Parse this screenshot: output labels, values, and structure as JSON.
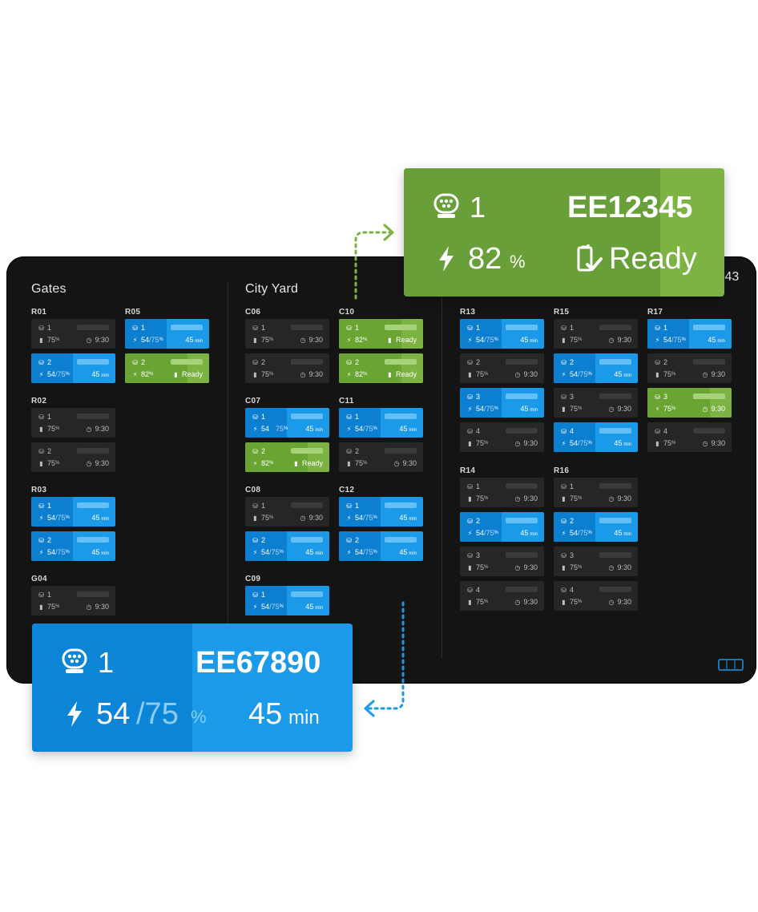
{
  "colors": {
    "charging": "#1a9ae8",
    "ready": "#7cb342",
    "idle": "#262626",
    "background": "#141414"
  },
  "screen": {
    "time_fragment": ":43",
    "sections": [
      {
        "title": "Gates"
      },
      {
        "title": "City Yard"
      }
    ]
  },
  "groups": [
    {
      "id": "R01",
      "label": "R01",
      "cards": [
        {
          "status": "idle",
          "num": "1",
          "pct": "75",
          "right": "9:30"
        },
        {
          "status": "charging",
          "num": "2",
          "pct": "54",
          "target": "/75",
          "right": "45"
        }
      ]
    },
    {
      "id": "R05",
      "label": "R05",
      "cards": [
        {
          "status": "charging",
          "num": "1",
          "pct": "54",
          "target": "/75",
          "right": "45"
        },
        {
          "status": "ready",
          "num": "2",
          "pct": "82",
          "right": "Ready"
        }
      ]
    },
    {
      "id": "R02",
      "label": "R02",
      "cards": [
        {
          "status": "idle",
          "num": "1",
          "pct": "75",
          "right": "9:30"
        },
        {
          "status": "idle",
          "num": "2",
          "pct": "75",
          "right": "9:30"
        }
      ]
    },
    {
      "id": "R03",
      "label": "R03",
      "cards": [
        {
          "status": "charging",
          "num": "1",
          "pct": "54",
          "target": "/75",
          "right": "45"
        },
        {
          "status": "charging",
          "num": "2",
          "pct": "54",
          "target": "/75",
          "right": "45"
        }
      ]
    },
    {
      "id": "G04",
      "label": "G04",
      "cards": [
        {
          "status": "idle",
          "num": "1",
          "pct": "75",
          "right": "9:30"
        }
      ]
    },
    {
      "id": "C06",
      "label": "C06",
      "cards": [
        {
          "status": "idle",
          "num": "1",
          "pct": "75",
          "right": "9:30"
        },
        {
          "status": "idle",
          "num": "2",
          "pct": "75",
          "right": "9:30"
        }
      ]
    },
    {
      "id": "C10",
      "label": "C10",
      "cards": [
        {
          "status": "ready",
          "num": "1",
          "pct": "82",
          "right": "Ready"
        },
        {
          "status": "ready",
          "num": "2",
          "pct": "82",
          "right": "Ready"
        }
      ]
    },
    {
      "id": "C07",
      "label": "C07",
      "cards": [
        {
          "status": "charging",
          "num": "1",
          "pct": "54",
          "target": "75",
          "right": "45"
        },
        {
          "status": "ready",
          "num": "2",
          "pct": "82",
          "right": "Ready"
        }
      ]
    },
    {
      "id": "C11",
      "label": "C11",
      "cards": [
        {
          "status": "charging",
          "num": "1",
          "pct": "54",
          "target": "/75",
          "right": "45"
        },
        {
          "status": "idle",
          "num": "2",
          "pct": "75",
          "right": "9:30"
        }
      ]
    },
    {
      "id": "C08",
      "label": "C08",
      "cards": [
        {
          "status": "idle",
          "num": "1",
          "pct": "75",
          "right": "9:30"
        },
        {
          "status": "charging",
          "num": "2",
          "pct": "54",
          "target": "/75",
          "right": "45"
        }
      ]
    },
    {
      "id": "C12",
      "label": "C12",
      "cards": [
        {
          "status": "charging",
          "num": "1",
          "pct": "54",
          "target": "/75",
          "right": "45"
        },
        {
          "status": "charging",
          "num": "2",
          "pct": "54",
          "target": "/75",
          "right": "45"
        }
      ]
    },
    {
      "id": "C09",
      "label": "C09",
      "cards": [
        {
          "status": "charging",
          "num": "1",
          "pct": "54",
          "target": "/75",
          "right": "45"
        }
      ]
    },
    {
      "id": "R13",
      "label": "R13",
      "cards": [
        {
          "status": "charging",
          "num": "1",
          "pct": "54",
          "target": "/75",
          "right": "45"
        },
        {
          "status": "idle",
          "num": "2",
          "pct": "75",
          "right": "9:30"
        },
        {
          "status": "charging",
          "num": "3",
          "pct": "54",
          "target": "/75",
          "right": "45"
        },
        {
          "status": "idle",
          "num": "4",
          "pct": "75",
          "right": "9:30"
        }
      ]
    },
    {
      "id": "R15",
      "label": "R15",
      "cards": [
        {
          "status": "idle",
          "num": "1",
          "pct": "75",
          "right": "9:30"
        },
        {
          "status": "charging",
          "num": "2",
          "pct": "54",
          "target": "/75",
          "right": "45"
        },
        {
          "status": "idle",
          "num": "3",
          "pct": "75",
          "right": "9:30"
        },
        {
          "status": "charging",
          "num": "4",
          "pct": "54",
          "target": "/75",
          "right": "45"
        }
      ]
    },
    {
      "id": "R17",
      "label": "R17",
      "cards": [
        {
          "status": "charging",
          "num": "1",
          "pct": "54",
          "target": "/75",
          "right": "45"
        },
        {
          "status": "idle",
          "num": "2",
          "pct": "75",
          "right": "9:30"
        },
        {
          "status": "ready",
          "num": "3",
          "pct": "75",
          "right": "9:30"
        },
        {
          "status": "idle",
          "num": "4",
          "pct": "75",
          "right": "9:30"
        }
      ]
    },
    {
      "id": "R14",
      "label": "R14",
      "cards": [
        {
          "status": "idle",
          "num": "1",
          "pct": "75",
          "right": "9:30"
        },
        {
          "status": "charging",
          "num": "2",
          "pct": "54",
          "target": "/75",
          "right": "45"
        },
        {
          "status": "idle",
          "num": "3",
          "pct": "75",
          "right": "9:30"
        },
        {
          "status": "idle",
          "num": "4",
          "pct": "75",
          "right": "9:30"
        }
      ]
    },
    {
      "id": "R16",
      "label": "R16",
      "cards": [
        {
          "status": "idle",
          "num": "1",
          "pct": "75",
          "right": "9:30"
        },
        {
          "status": "charging",
          "num": "2",
          "pct": "54",
          "target": "/75",
          "right": "45"
        },
        {
          "status": "idle",
          "num": "3",
          "pct": "75",
          "right": "9:30"
        },
        {
          "status": "idle",
          "num": "4",
          "pct": "75",
          "right": "9:30"
        }
      ]
    }
  ],
  "units": {
    "pct": "%",
    "min": "min",
    "ready": "Ready",
    "c07_extra_pct": "%"
  },
  "callout_ready": {
    "connector": "1",
    "vehicle_id": "EE12345",
    "charge": "82",
    "unit": "%",
    "status": "Ready"
  },
  "callout_charging": {
    "connector": "1",
    "vehicle_id": "EE67890",
    "charge": "54",
    "target": "/75",
    "unit": "%",
    "time": "45",
    "time_unit": "min"
  }
}
